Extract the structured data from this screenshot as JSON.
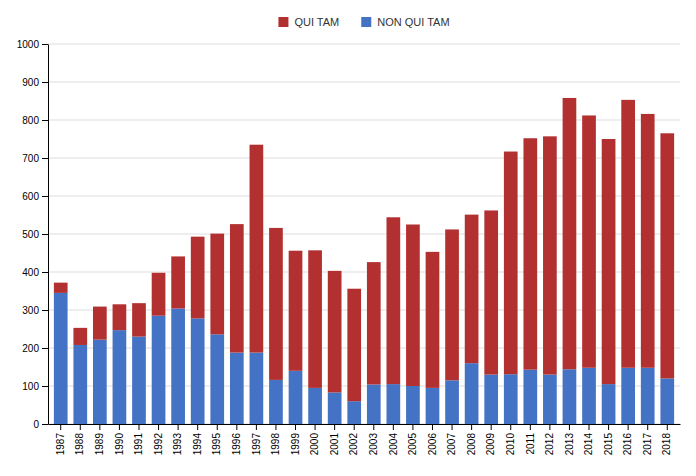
{
  "chart_data": {
    "type": "bar",
    "stacked": true,
    "categories": [
      "1987",
      "1988",
      "1989",
      "1990",
      "1991",
      "1992",
      "1993",
      "1994",
      "1995",
      "1996",
      "1997",
      "1998",
      "1999",
      "2000",
      "2001",
      "2002",
      "2003",
      "2004",
      "2005",
      "2006",
      "2007",
      "2008",
      "2009",
      "2010",
      "2011",
      "2012",
      "2013",
      "2014",
      "2015",
      "2016",
      "2017",
      "2018"
    ],
    "series": [
      {
        "name": "NON QUI TAM",
        "color": "#4472c4",
        "values": [
          345,
          208,
          222,
          247,
          230,
          285,
          304,
          278,
          236,
          188,
          188,
          116,
          140,
          95,
          83,
          60,
          104,
          105,
          100,
          95,
          115,
          160,
          130,
          131,
          143,
          130,
          144,
          148,
          105,
          148,
          148,
          120
        ]
      },
      {
        "name": "QUI TAM",
        "color": "#b23030",
        "values": [
          27,
          45,
          87,
          68,
          88,
          113,
          137,
          215,
          265,
          338,
          547,
          400,
          316,
          362,
          320,
          296,
          322,
          439,
          425,
          358,
          397,
          391,
          432,
          586,
          609,
          627,
          714,
          664,
          645,
          705,
          668,
          645
        ]
      }
    ],
    "ylim": [
      0,
      1000
    ],
    "yticks": [
      0,
      100,
      200,
      300,
      400,
      500,
      600,
      700,
      800,
      900,
      1000
    ],
    "grid": true,
    "legend": "top"
  }
}
